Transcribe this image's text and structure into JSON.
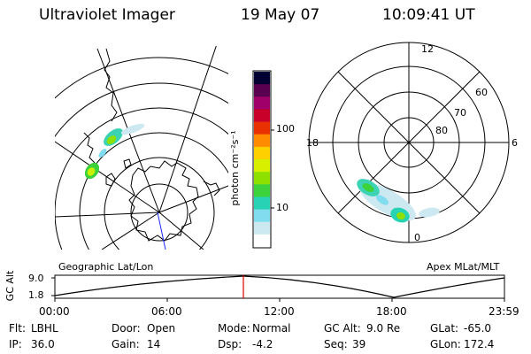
{
  "header": {
    "title": "Ultraviolet Imager",
    "date": "19 May 07",
    "time": "10:09:41 UT"
  },
  "colorbar": {
    "label": "photon cm⁻²s⁻¹",
    "ticks": [
      "100",
      "10"
    ],
    "colors": [
      "#000033",
      "#5a0050",
      "#a0006a",
      "#c8002a",
      "#e83000",
      "#ff8c00",
      "#ffd000",
      "#d8f000",
      "#8ee000",
      "#3cd23c",
      "#28d2b4",
      "#82dcf0",
      "#cce8f0",
      "#ffffff"
    ]
  },
  "left_panel": {
    "caption": "Geographic Lat/Lon"
  },
  "right_panel": {
    "caption": "Apex MLat/MLT",
    "mlt_labels": [
      "12",
      "18",
      "6",
      "0"
    ],
    "lat_labels": [
      "60",
      "70",
      "80"
    ]
  },
  "altitude_plot": {
    "ylabel": "GC Alt",
    "yticks": [
      "9.0",
      "1.8"
    ],
    "xticks": [
      "00:00",
      "06:00",
      "12:00",
      "18:00",
      "23:59"
    ],
    "current_marker_color": "#e00000"
  },
  "status": {
    "row1": [
      {
        "label": "Flt:",
        "value": "LBHL"
      },
      {
        "label": "Door:",
        "value": "Open"
      },
      {
        "label": "Mode:",
        "value": "Normal"
      },
      {
        "label": "GC Alt:",
        "value": "9.0 Re"
      },
      {
        "label": "GLat:",
        "value": "-65.0"
      }
    ],
    "row2": [
      {
        "label": "IP:",
        "value": "36.0"
      },
      {
        "label": "Gain:",
        "value": "14"
      },
      {
        "label": "Dsp:",
        "value": "-4.2"
      },
      {
        "label": "Seq:",
        "value": "39"
      },
      {
        "label": "GLon:",
        "value": "172.4"
      }
    ]
  }
}
